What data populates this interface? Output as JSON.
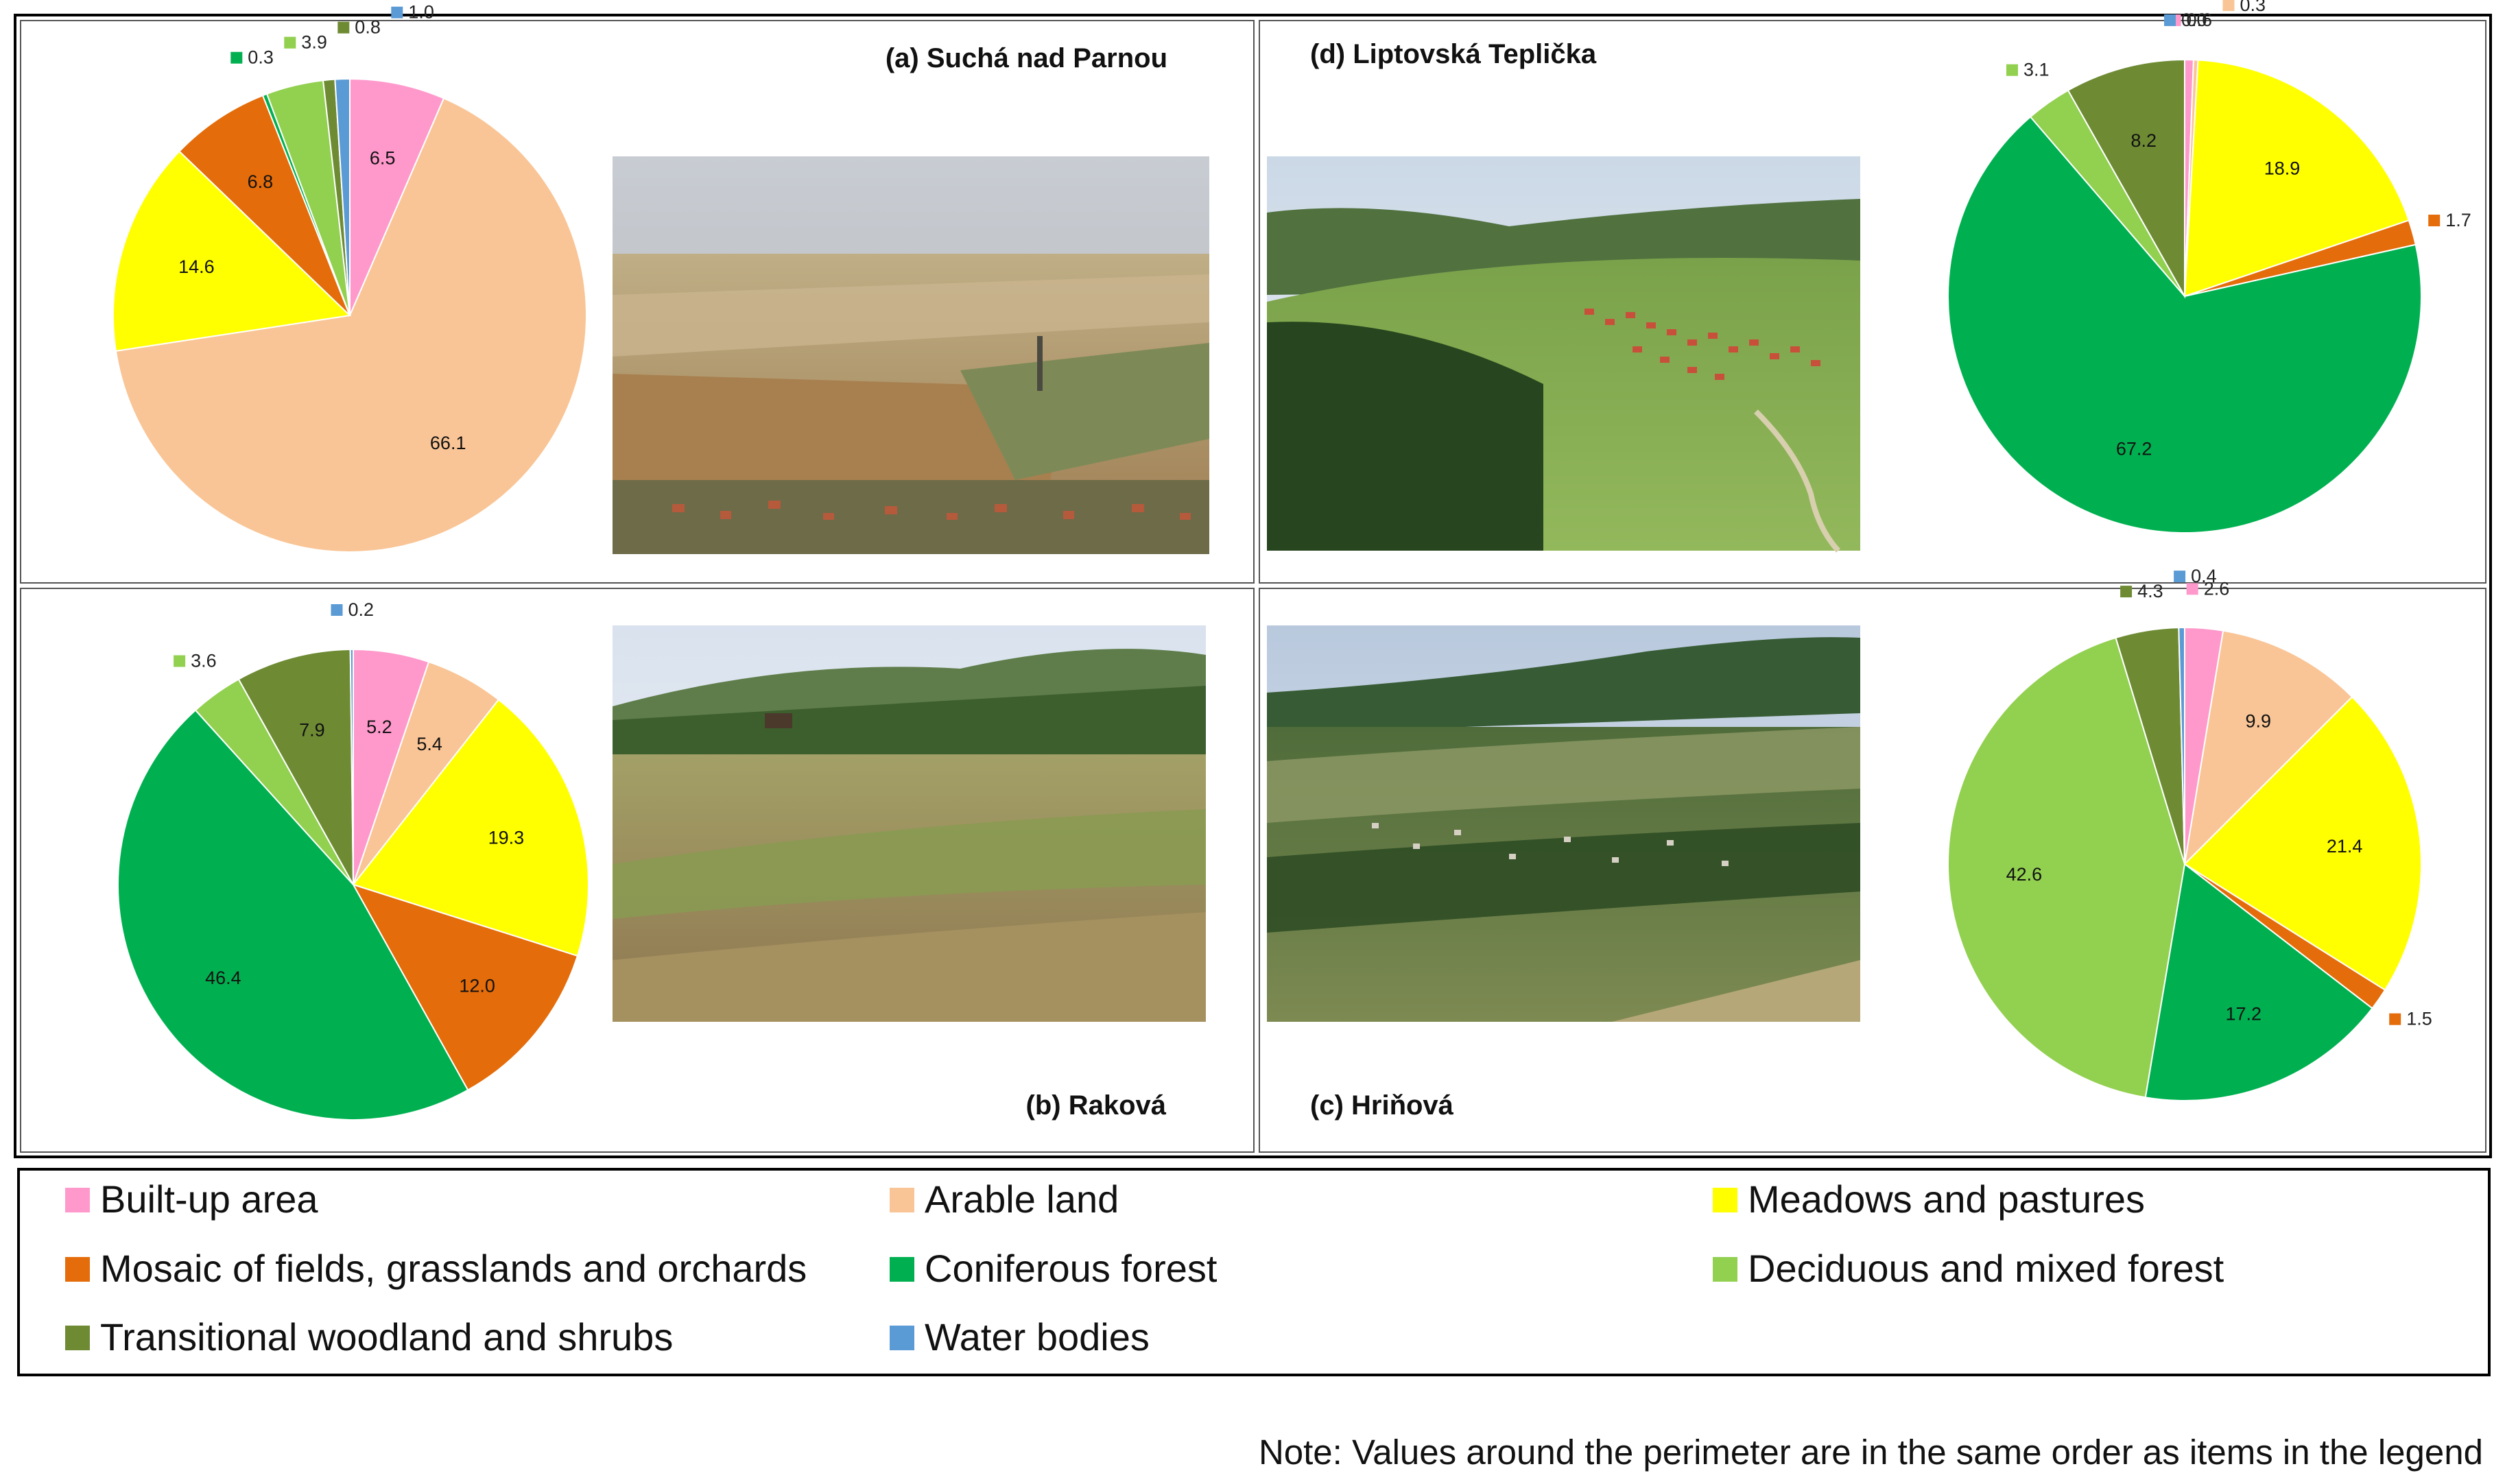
{
  "colors": {
    "built_up": "#FF99CC",
    "arable": "#F9C596",
    "meadows": "#FFFF00",
    "mosaic": "#E46C0A",
    "coniferous": "#00B050",
    "deciduous": "#92D050",
    "transitional": "#6E8B34",
    "water": "#5B9BD5"
  },
  "legend": {
    "items": [
      {
        "label": "Built-up area",
        "color": "#FF99CC"
      },
      {
        "label": "Arable land",
        "color": "#F9C596"
      },
      {
        "label": "Meadows and pastures",
        "color": "#FFFF00"
      },
      {
        "label": "Mosaic of fields, grasslands and orchards",
        "color": "#E46C0A"
      },
      {
        "label": "Coniferous forest",
        "color": "#00B050"
      },
      {
        "label": "Deciduous and mixed forest",
        "color": "#92D050"
      },
      {
        "label": "Transitional woodland and shrubs",
        "color": "#6E8B34"
      },
      {
        "label": "Water bodies",
        "color": "#5B9BD5"
      }
    ]
  },
  "note": "Note: Values around the perimeter are in the same order as items in the legend",
  "chart_data": [
    {
      "type": "pie",
      "title": "(a) Suchá nad Parnou",
      "categories": [
        "Built-up area",
        "Arable land",
        "Meadows and pastures",
        "Mosaic of fields, grasslands and orchards",
        "Coniferous forest",
        "Deciduous and mixed forest",
        "Transitional woodland and shrubs",
        "Water bodies"
      ],
      "values": [
        6.5,
        66.1,
        14.6,
        6.8,
        0.3,
        3.9,
        0.8,
        1.0
      ],
      "labels": [
        "6.5",
        "66.1",
        "14.6",
        "6.8",
        "0.3",
        "3.9",
        "0.8",
        "1.0"
      ]
    },
    {
      "type": "pie",
      "title": "(b) Raková",
      "categories": [
        "Built-up area",
        "Arable land",
        "Meadows and pastures",
        "Mosaic of fields, grasslands and orchards",
        "Coniferous forest",
        "Deciduous and mixed forest",
        "Transitional woodland and shrubs",
        "Water bodies"
      ],
      "values": [
        5.2,
        5.4,
        19.3,
        12.0,
        46.4,
        3.6,
        7.9,
        0.2
      ],
      "labels": [
        "5.2",
        "5.4",
        "19.3",
        "12.0",
        "46.4",
        "3.6",
        "7.9",
        "0.2"
      ]
    },
    {
      "type": "pie",
      "title": "(c) Hriňová",
      "categories": [
        "Built-up area",
        "Arable land",
        "Meadows and pastures",
        "Mosaic of fields, grasslands and orchards",
        "Coniferous forest",
        "Deciduous and mixed forest",
        "Transitional woodland and shrubs",
        "Water bodies"
      ],
      "values": [
        2.6,
        9.9,
        21.4,
        1.5,
        17.2,
        42.6,
        4.3,
        0.4
      ],
      "labels": [
        "2.6",
        "9.9",
        "21.4",
        "1.5",
        "17.2",
        "42.6",
        "4.3",
        "0.4"
      ]
    },
    {
      "type": "pie",
      "title": "(d) Liptovská Teplička",
      "categories": [
        "Built-up area",
        "Arable land",
        "Meadows and pastures",
        "Mosaic of fields, grasslands and orchards",
        "Coniferous forest",
        "Deciduous and mixed forest",
        "Transitional woodland and shrubs",
        "Water bodies"
      ],
      "values": [
        0.6,
        0.3,
        18.9,
        1.7,
        67.2,
        3.1,
        8.2,
        0.0
      ],
      "labels": [
        "0.6",
        "0.3",
        "18.9",
        "1.7",
        "67.2",
        "3.1",
        "8.2",
        "0.0"
      ]
    }
  ]
}
